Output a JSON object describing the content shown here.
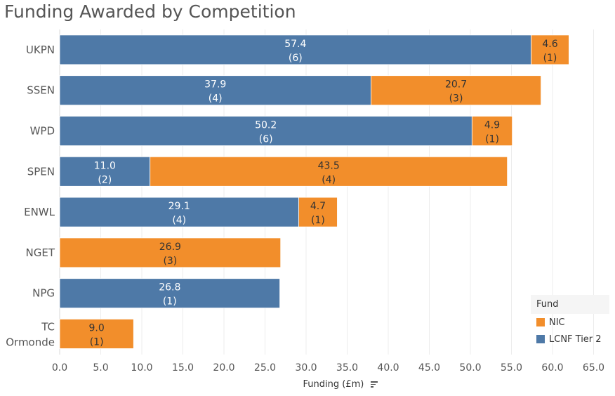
{
  "chart_data": {
    "type": "bar",
    "orientation": "horizontal",
    "stacked": true,
    "title": "Funding Awarded by Competition",
    "xlabel": "Funding (£m)",
    "ylabel": "",
    "xlim": [
      0,
      65
    ],
    "xticks": [
      "0.0",
      "5.0",
      "10.0",
      "15.0",
      "20.0",
      "25.0",
      "30.0",
      "35.0",
      "40.0",
      "45.0",
      "50.0",
      "55.0",
      "60.0",
      "65.0"
    ],
    "grid": true,
    "legend_title": "Fund",
    "legend_position": "bottom-right",
    "categories": [
      "UKPN",
      "SSEN",
      "WPD",
      "SPEN",
      "ENWL",
      "NGET",
      "NPG",
      "TC Ormonde"
    ],
    "series": [
      {
        "name": "LCNF Tier 2",
        "color": "#4e79a7",
        "values": [
          57.4,
          37.9,
          50.2,
          11.0,
          29.1,
          null,
          26.8,
          null
        ],
        "counts": [
          "(6)",
          "(4)",
          "(6)",
          "(2)",
          "(4)",
          null,
          "(1)",
          null
        ],
        "labels": [
          "57.4",
          "37.9",
          "50.2",
          "11.0",
          "29.1",
          null,
          "26.8",
          null
        ]
      },
      {
        "name": "NIC",
        "color": "#f28e2b",
        "values": [
          4.6,
          20.7,
          4.9,
          43.5,
          4.7,
          26.9,
          null,
          9.0
        ],
        "counts": [
          "(1)",
          "(3)",
          "(1)",
          "(4)",
          "(1)",
          "(3)",
          null,
          "(1)"
        ],
        "labels": [
          "4.6",
          "20.7",
          "4.9",
          "43.5",
          "4.7",
          "26.9",
          null,
          "9.0"
        ]
      }
    ]
  }
}
